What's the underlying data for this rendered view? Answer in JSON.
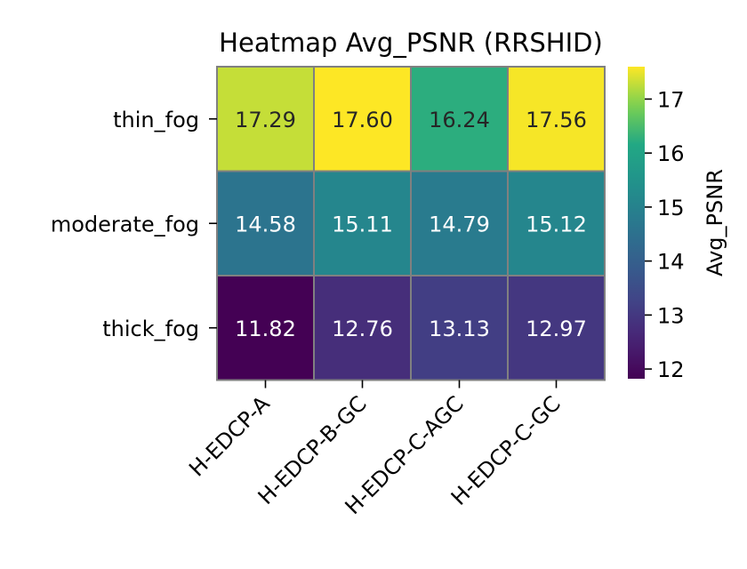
{
  "chart_data": {
    "type": "heatmap",
    "title": "Heatmap Avg_PSNR (RRSHID)",
    "xlabel": "",
    "ylabel": "",
    "rows": [
      "thin_fog",
      "moderate_fog",
      "thick_fog"
    ],
    "columns": [
      "H-EDCP-A",
      "H-EDCP-B-GC",
      "H-EDCP-C-AGC",
      "H-EDCP-C-GC"
    ],
    "values": [
      [
        17.29,
        17.6,
        16.24,
        17.56
      ],
      [
        14.58,
        15.11,
        14.79,
        15.12
      ],
      [
        11.82,
        12.76,
        13.13,
        12.97
      ]
    ],
    "value_labels": [
      [
        "17.29",
        "17.60",
        "16.24",
        "17.56"
      ],
      [
        "14.58",
        "15.11",
        "14.79",
        "15.12"
      ],
      [
        "11.82",
        "12.76",
        "13.13",
        "12.97"
      ]
    ],
    "colormap": "viridis",
    "vmin": 11.82,
    "vmax": 17.6,
    "colorbar": {
      "label": "Avg_PSNR",
      "ticks": [
        12,
        13,
        14,
        15,
        16,
        17
      ],
      "tick_labels": [
        "12",
        "13",
        "14",
        "15",
        "16",
        "17"
      ],
      "placement": "right"
    },
    "cell_border_color": "#808080",
    "grid": false
  }
}
